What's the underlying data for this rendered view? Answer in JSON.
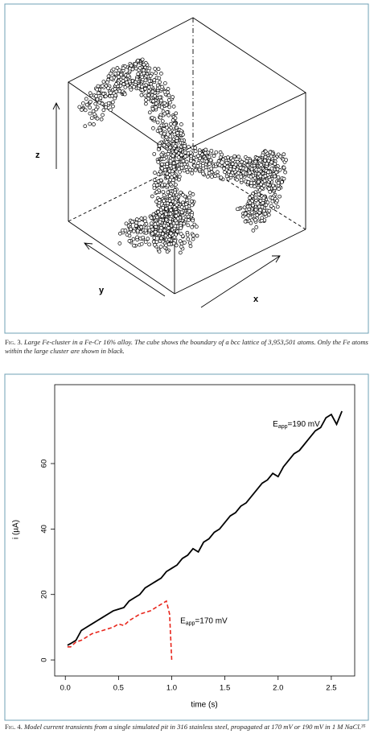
{
  "figure3": {
    "axis_labels": {
      "x": "x",
      "y": "y",
      "z": "z"
    },
    "caption": {
      "label": "Fig. 3.",
      "text": "Large Fe-cluster in a Fe-Cr 16% alloy. The cube shows the boundary of a bcc lattice of 3,953,501 atoms. Only the Fe atoms within the large cluster are shown in black."
    }
  },
  "chart_data": {
    "type": "line",
    "xlabel": "time (s)",
    "ylabel": "i (µA)",
    "xlim": [
      -0.1,
      2.72
    ],
    "ylim": [
      -4.9,
      84.1
    ],
    "xticks": [
      {
        "value": 0,
        "label": "0.0"
      },
      0.5,
      {
        "value": 1,
        "label": "1.0"
      },
      1.5,
      {
        "value": 2,
        "label": "2.0"
      },
      2.5
    ],
    "yticks": [
      0,
      20,
      40,
      60
    ],
    "series": [
      {
        "name": "190 mV",
        "color": "#000000",
        "dash": false,
        "x": [
          0.02,
          0.05,
          0.1,
          0.15,
          0.2,
          0.25,
          0.3,
          0.35,
          0.4,
          0.45,
          0.5,
          0.55,
          0.6,
          0.65,
          0.7,
          0.75,
          0.8,
          0.85,
          0.9,
          0.95,
          1.0,
          1.05,
          1.1,
          1.15,
          1.2,
          1.25,
          1.3,
          1.35,
          1.4,
          1.45,
          1.5,
          1.55,
          1.6,
          1.65,
          1.7,
          1.75,
          1.8,
          1.85,
          1.9,
          1.95,
          2.0,
          2.05,
          2.1,
          2.15,
          2.2,
          2.25,
          2.3,
          2.35,
          2.4,
          2.45,
          2.5,
          2.55,
          2.6
        ],
        "values": [
          4.5,
          5,
          6,
          9,
          10,
          11,
          12,
          13,
          14,
          15,
          15.5,
          16,
          18,
          19,
          20,
          22,
          23,
          24,
          25,
          27,
          28,
          29,
          31,
          32,
          34,
          33,
          36,
          37,
          39,
          40,
          42,
          44,
          45,
          47,
          48,
          50,
          52,
          54,
          55,
          57,
          56,
          59,
          61,
          63,
          64,
          66,
          68,
          70,
          71,
          74,
          75,
          72,
          76
        ]
      },
      {
        "name": "170 mV",
        "color": "#e8261c",
        "dash": true,
        "x": [
          0.02,
          0.05,
          0.1,
          0.15,
          0.2,
          0.25,
          0.3,
          0.35,
          0.4,
          0.45,
          0.5,
          0.55,
          0.6,
          0.65,
          0.7,
          0.75,
          0.8,
          0.85,
          0.9,
          0.95,
          0.98,
          1.0
        ],
        "values": [
          4,
          4,
          5.5,
          6,
          7,
          8,
          8.5,
          9,
          9.5,
          10,
          11,
          10.5,
          12,
          13,
          14,
          14.5,
          15,
          16,
          17,
          18,
          14,
          0
        ]
      }
    ],
    "annotations": [
      {
        "main": "E",
        "subscript": "app",
        "suffix": "=190 mV",
        "x": 1.95,
        "y": 72
      },
      {
        "main": "E",
        "subscript": "app",
        "suffix": "=170 mV",
        "x": 1.08,
        "y": 12
      }
    ],
    "caption": {
      "label": "Fig. 4.",
      "text": "Model current transients from a single simulated pit in 316 stainless steel, propagated at 170 mV or 190 mV in 1 M NaCl.³⁵"
    }
  }
}
